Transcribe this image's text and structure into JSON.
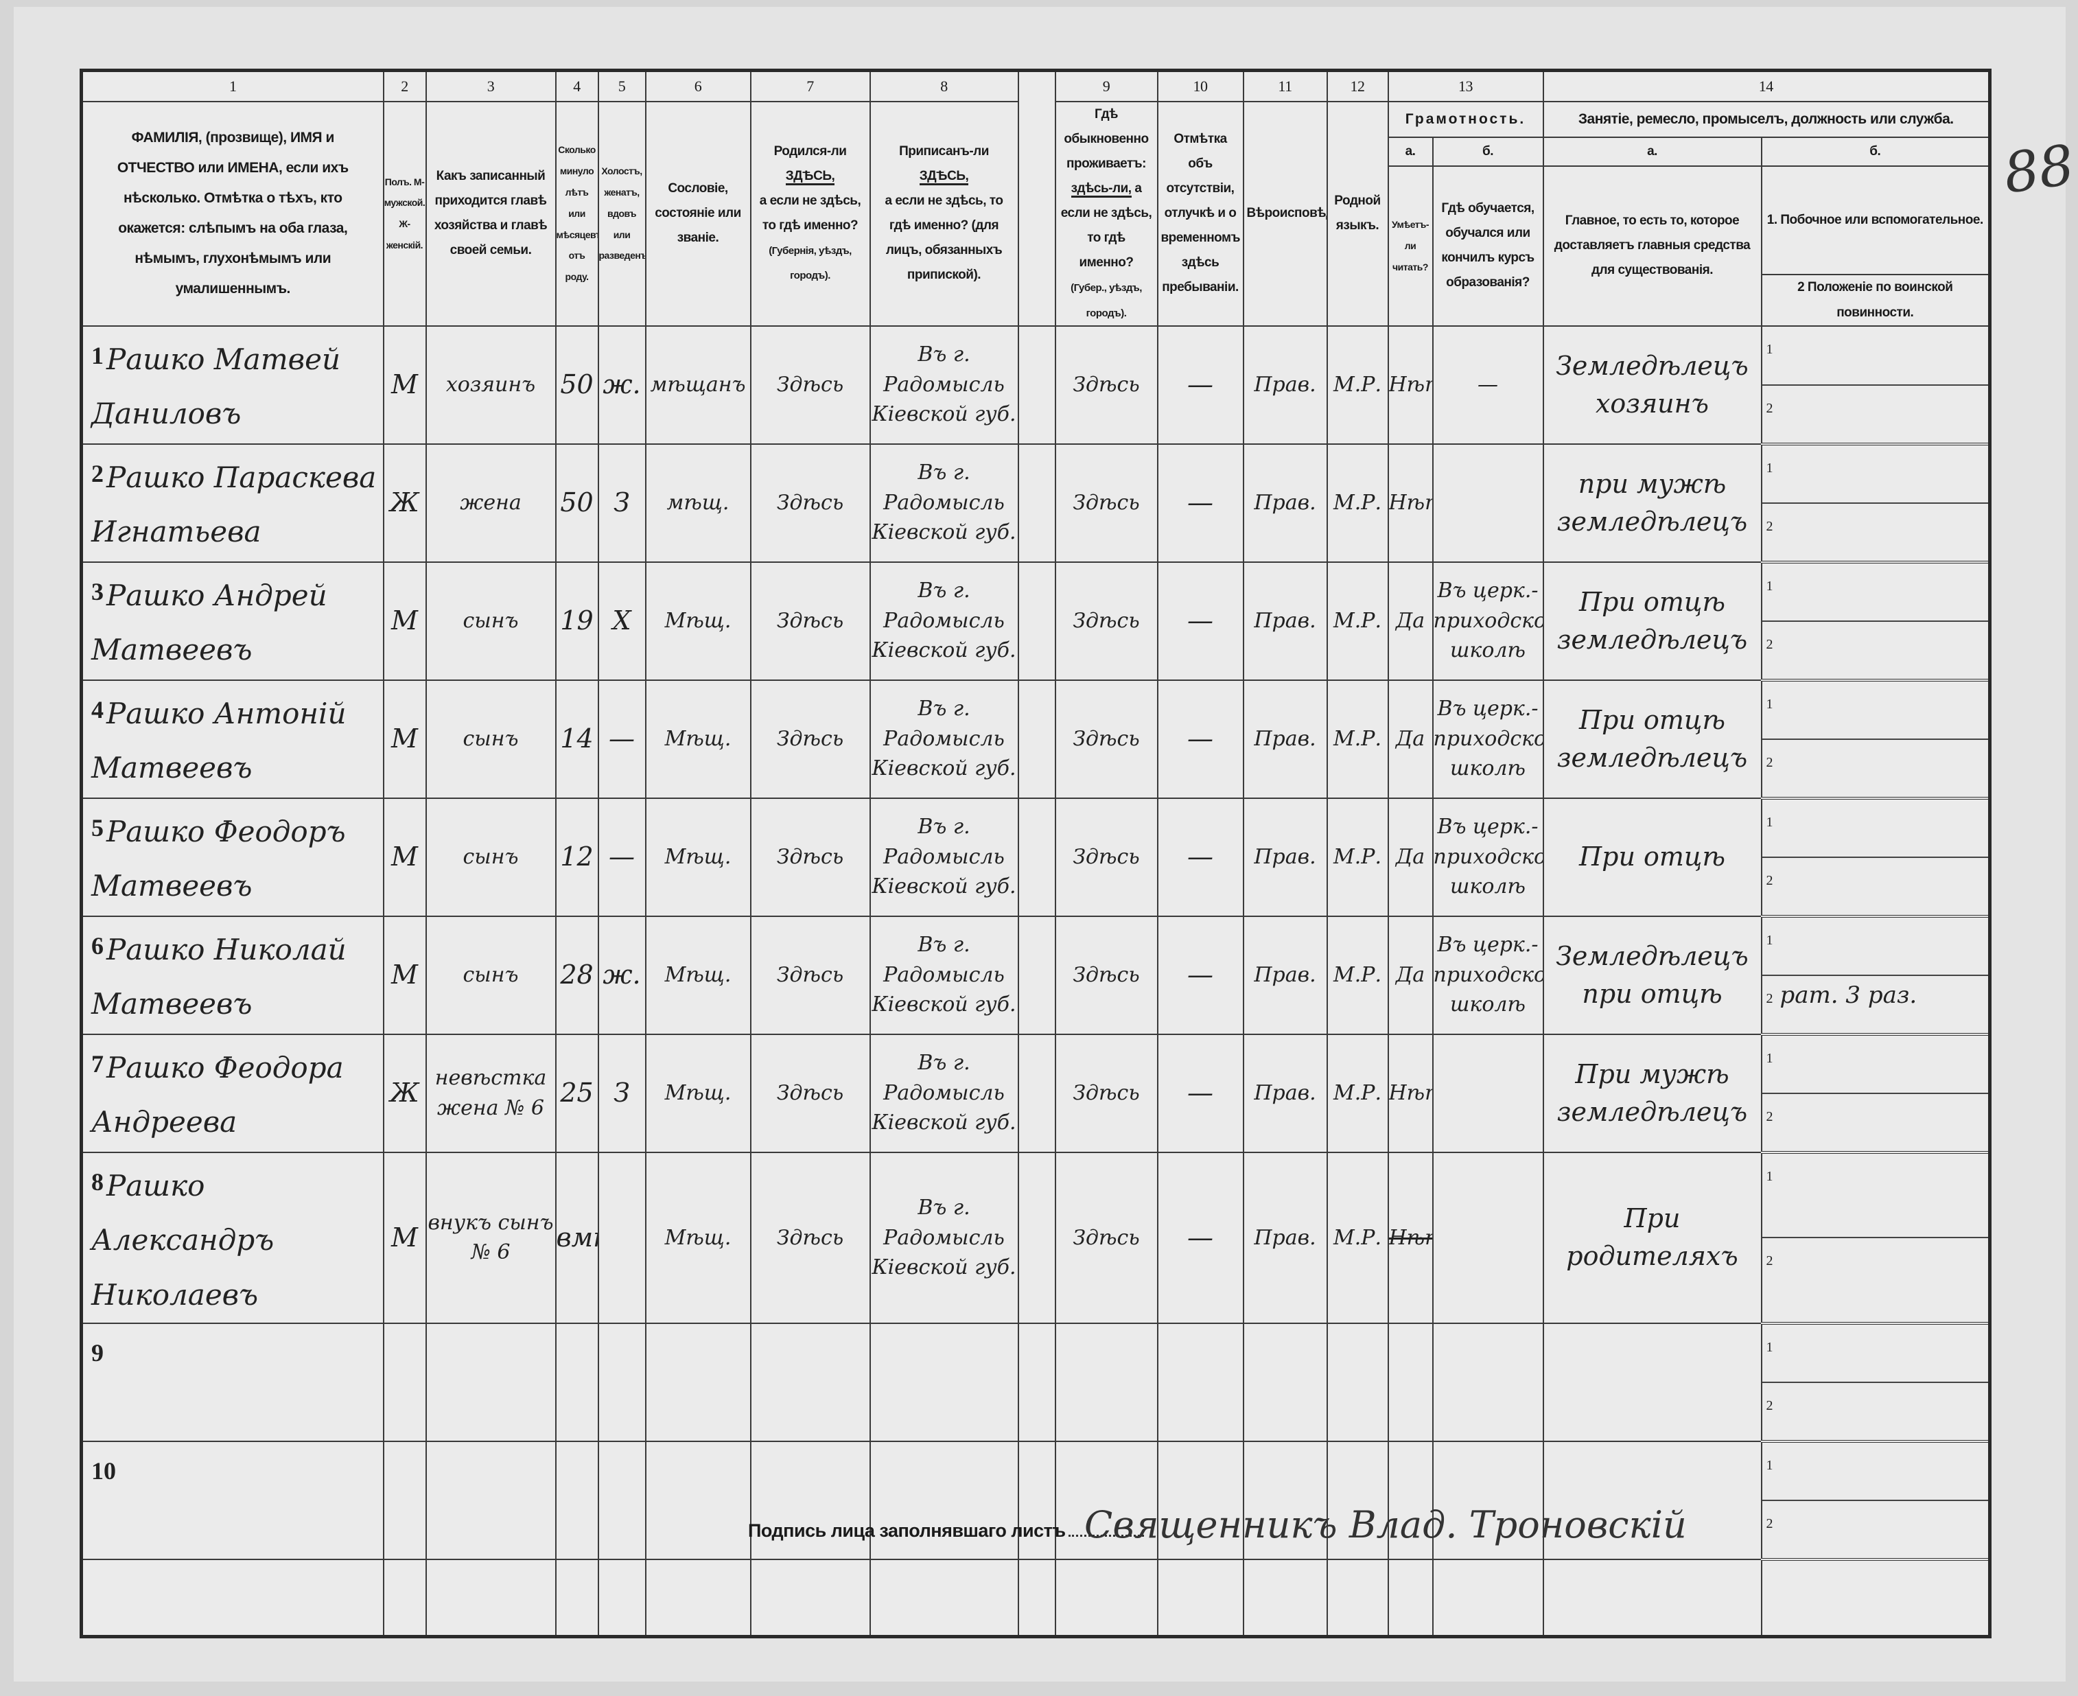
{
  "page_number": "88",
  "header": {
    "col_numbers": [
      "1",
      "2",
      "3",
      "4",
      "5",
      "6",
      "7",
      "8",
      "9",
      "10",
      "11",
      "12",
      "13",
      "14"
    ],
    "c1": "ФАМИЛІЯ, (прозвище), ИМЯ и ОТЧЕСТВО или ИМЕНА, если ихъ нѣсколько. Отмѣтка о тѣхъ, кто окажется: слѣпымъ на оба глаза, нѣмымъ, глухонѣмымъ или умалишеннымъ.",
    "c2": "Полъ. М-мужской. Ж-женскій.",
    "c3": "Какъ записанный приходится главѣ хозяйства и главѣ своей семьи.",
    "c4": "Сколько минуло лѣтъ или мѣсяцевъ отъ роду.",
    "c5": "Холостъ, женатъ, вдовъ или разведенъ.",
    "c6": "Сословіе, состояніе или званіе.",
    "c7_a": "Родился-ли ",
    "c7_here": "ЗДѢСЬ,",
    "c7_b": "а если не здѣсь, то гдѣ именно?",
    "c7_c": "(Губернія, уѣздъ, городъ).",
    "c8_a": "Приписанъ-ли ",
    "c8_here": "ЗДѢСЬ,",
    "c8_b": "а если не здѣсь, то гдѣ именно? (для лицъ, обязанныхъ припиской).",
    "c9_a": "Гдѣ обыкновенно проживаетъ:",
    "c9_here": "здѣсь-ли,",
    "c9_b": "а если не здѣсь, то гдѣ именно?",
    "c9_c": "(Губер., уѣздъ, городъ).",
    "c10": "Отмѣтка объ отсутствіи, отлучкѣ и о временномъ здѣсь пребываніи.",
    "c11": "Вѣроисповѣданіе.",
    "c12": "Родной языкъ.",
    "c13": "Грамотность.",
    "c13a_label": "а.",
    "c13a": "Умѣетъ-ли читать?",
    "c13b_label": "б.",
    "c13b": "Гдѣ обучается, обучался или кончилъ курсъ образованія?",
    "c14": "Занятіе, ремесло, промыселъ, должность или служба.",
    "c14a_label": "а.",
    "c14a": "Главное, то есть то, которое доставляетъ главныя средства для существованія.",
    "c14b_label": "б.",
    "c14b1": "1. Побочное или вспомогательное.",
    "c14b2": "2 Положеніе по воинской повинности."
  },
  "rows": [
    {
      "n": "1",
      "name": "Рашко Матвей Даниловъ",
      "sex": "М",
      "relation": "хозяинъ",
      "age": "50",
      "marital": "ж.",
      "estate": "мѣщанъ",
      "born": "Здѣсь",
      "registered": "Въ г. Радомысль Кіевской губ.",
      "residence": "Здѣсь",
      "absence": "—",
      "religion": "Прав.",
      "language": "М.Р.",
      "can_read": "Нѣтъ",
      "school": "—",
      "occupation": "Земледѣлецъ хозяинъ",
      "side": "",
      "military": ""
    },
    {
      "n": "2",
      "name": "Рашко Параскева Игнатьева",
      "sex": "Ж",
      "relation": "жена",
      "age": "50",
      "marital": "З",
      "estate": "мѣщ.",
      "born": "Здѣсь",
      "registered": "Въ г. Радомысль Кіевской губ.",
      "residence": "Здѣсь",
      "absence": "—",
      "religion": "Прав.",
      "language": "М.Р.",
      "can_read": "Нѣтъ",
      "school": "",
      "occupation": "при мужѣ земледѣлецъ",
      "side": "",
      "military": ""
    },
    {
      "n": "3",
      "name": "Рашко Андрей Матвеевъ",
      "sex": "М",
      "relation": "сынъ",
      "age": "19",
      "marital": "Х",
      "estate": "Мѣщ.",
      "born": "Здѣсь",
      "registered": "Въ г. Радомысль Кіевской губ.",
      "residence": "Здѣсь",
      "absence": "—",
      "religion": "Прав.",
      "language": "М.Р.",
      "can_read": "Да",
      "school": "Въ церк.-приходской школѣ",
      "occupation": "При отцѣ земледѣлецъ",
      "side": "",
      "military": ""
    },
    {
      "n": "4",
      "name": "Рашко Антоній Матвеевъ",
      "sex": "М",
      "relation": "сынъ",
      "age": "14",
      "marital": "—",
      "estate": "Мѣщ.",
      "born": "Здѣсь",
      "registered": "Въ г. Радомысль Кіевской губ.",
      "residence": "Здѣсь",
      "absence": "—",
      "religion": "Прав.",
      "language": "М.Р.",
      "can_read": "Да",
      "school": "Въ церк.-приходской школѣ",
      "occupation": "При отцѣ земледѣлецъ",
      "side": "",
      "military": ""
    },
    {
      "n": "5",
      "name": "Рашко Феодоръ Матвеевъ",
      "sex": "М",
      "relation": "сынъ",
      "age": "12",
      "marital": "—",
      "estate": "Мѣщ.",
      "born": "Здѣсь",
      "registered": "Въ г. Радомысль Кіевской губ.",
      "residence": "Здѣсь",
      "absence": "—",
      "religion": "Прав.",
      "language": "М.Р.",
      "can_read": "Да",
      "school": "Въ церк.-приходской школѣ",
      "occupation": "При отцѣ",
      "side": "",
      "military": ""
    },
    {
      "n": "6",
      "name": "Рашко Николай Матвеевъ",
      "sex": "М",
      "relation": "сынъ",
      "age": "28",
      "marital": "ж.",
      "estate": "Мѣщ.",
      "born": "Здѣсь",
      "registered": "Въ г. Радомысль Кіевской губ.",
      "residence": "Здѣсь",
      "absence": "—",
      "religion": "Прав.",
      "language": "М.Р.",
      "can_read": "Да",
      "school": "Въ церк.-приходской школѣ",
      "occupation": "Земледѣлецъ при отцѣ",
      "side": "",
      "military": "рат. 3 раз."
    },
    {
      "n": "7",
      "name": "Рашко Феодора Андреева",
      "sex": "Ж",
      "relation": "невѣстка жена № 6",
      "age": "25",
      "marital": "З",
      "estate": "Мѣщ.",
      "born": "Здѣсь",
      "registered": "Въ г. Радомысль Кіевской губ.",
      "residence": "Здѣсь",
      "absence": "—",
      "religion": "Прав.",
      "language": "М.Р.",
      "can_read": "Нѣтъ",
      "school": "",
      "occupation": "При мужѣ земледѣлецъ",
      "side": "",
      "military": ""
    },
    {
      "n": "8",
      "name": "Рашко Александръ Николаевъ",
      "sex": "М",
      "relation": "внукъ сынъ № 6",
      "age": "вмѣс.",
      "marital": "",
      "estate": "Мѣщ.",
      "born": "Здѣсь",
      "registered": "Въ г. Радомысль Кіевской губ.",
      "residence": "Здѣсь",
      "absence": "—",
      "religion": "Прав.",
      "language": "М.Р.",
      "can_read": "Нѣтъ",
      "school": "",
      "occupation": "При родителяхъ",
      "side": "",
      "military": ""
    },
    {
      "n": "9",
      "name": "",
      "sex": "",
      "relation": "",
      "age": "",
      "marital": "",
      "estate": "",
      "born": "",
      "registered": "",
      "residence": "",
      "absence": "",
      "religion": "",
      "language": "",
      "can_read": "",
      "school": "",
      "occupation": "",
      "side": "",
      "military": ""
    },
    {
      "n": "10",
      "name": "",
      "sex": "",
      "relation": "",
      "age": "",
      "marital": "",
      "estate": "",
      "born": "",
      "registered": "",
      "residence": "",
      "absence": "",
      "religion": "",
      "language": "",
      "can_read": "",
      "school": "",
      "occupation": "",
      "side": "",
      "military": ""
    }
  ],
  "sub_labels": [
    "1",
    "2"
  ],
  "footer": {
    "label": "Подпись лица заполнявшаго листъ",
    "signature": "Священникъ Влад. Троновскій"
  }
}
